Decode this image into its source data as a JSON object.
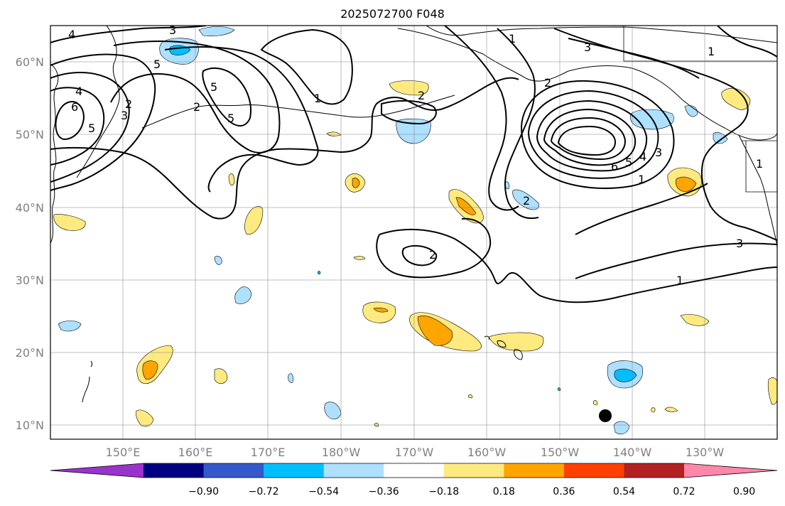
{
  "title": "2025072700 F048",
  "map": {
    "lat_labels": [
      "60°N",
      "50°N",
      "40°N",
      "30°N",
      "20°N",
      "10°N"
    ],
    "lon_labels": [
      "150°E",
      "160°E",
      "170°E",
      "180°W",
      "170°W",
      "160°W",
      "150°W",
      "140°W",
      "130°W"
    ],
    "grid": true,
    "projection": "PlateCarree"
  },
  "contour_labels": [
    "4",
    "3",
    "5",
    "4",
    "6",
    "5",
    "3",
    "2",
    "2",
    "5",
    "5",
    "1",
    "2",
    "1",
    "3",
    "2",
    "1",
    "6",
    "5",
    "4",
    "3",
    "1",
    "1",
    "3",
    "2",
    "2",
    "1"
  ],
  "colorbar": {
    "tick_labels": [
      "−0.90",
      "−0.72",
      "−0.54",
      "−0.36",
      "−0.18",
      "0.18",
      "0.36",
      "0.54",
      "0.72",
      "0.90"
    ],
    "colors": [
      "#9933cc",
      "#000080",
      "#3359cc",
      "#00bfff",
      "#aee0ff",
      "#ffffff",
      "#ffea80",
      "#ffa500",
      "#ff4000",
      "#b22222",
      "#ff88aa"
    ],
    "extend": "both"
  },
  "marker": {
    "color": "#000000"
  },
  "fill_colors": {
    "light_yellow": "#ffea80",
    "orange": "#ffa500",
    "light_blue": "#aee0ff",
    "blue": "#00bfff"
  }
}
